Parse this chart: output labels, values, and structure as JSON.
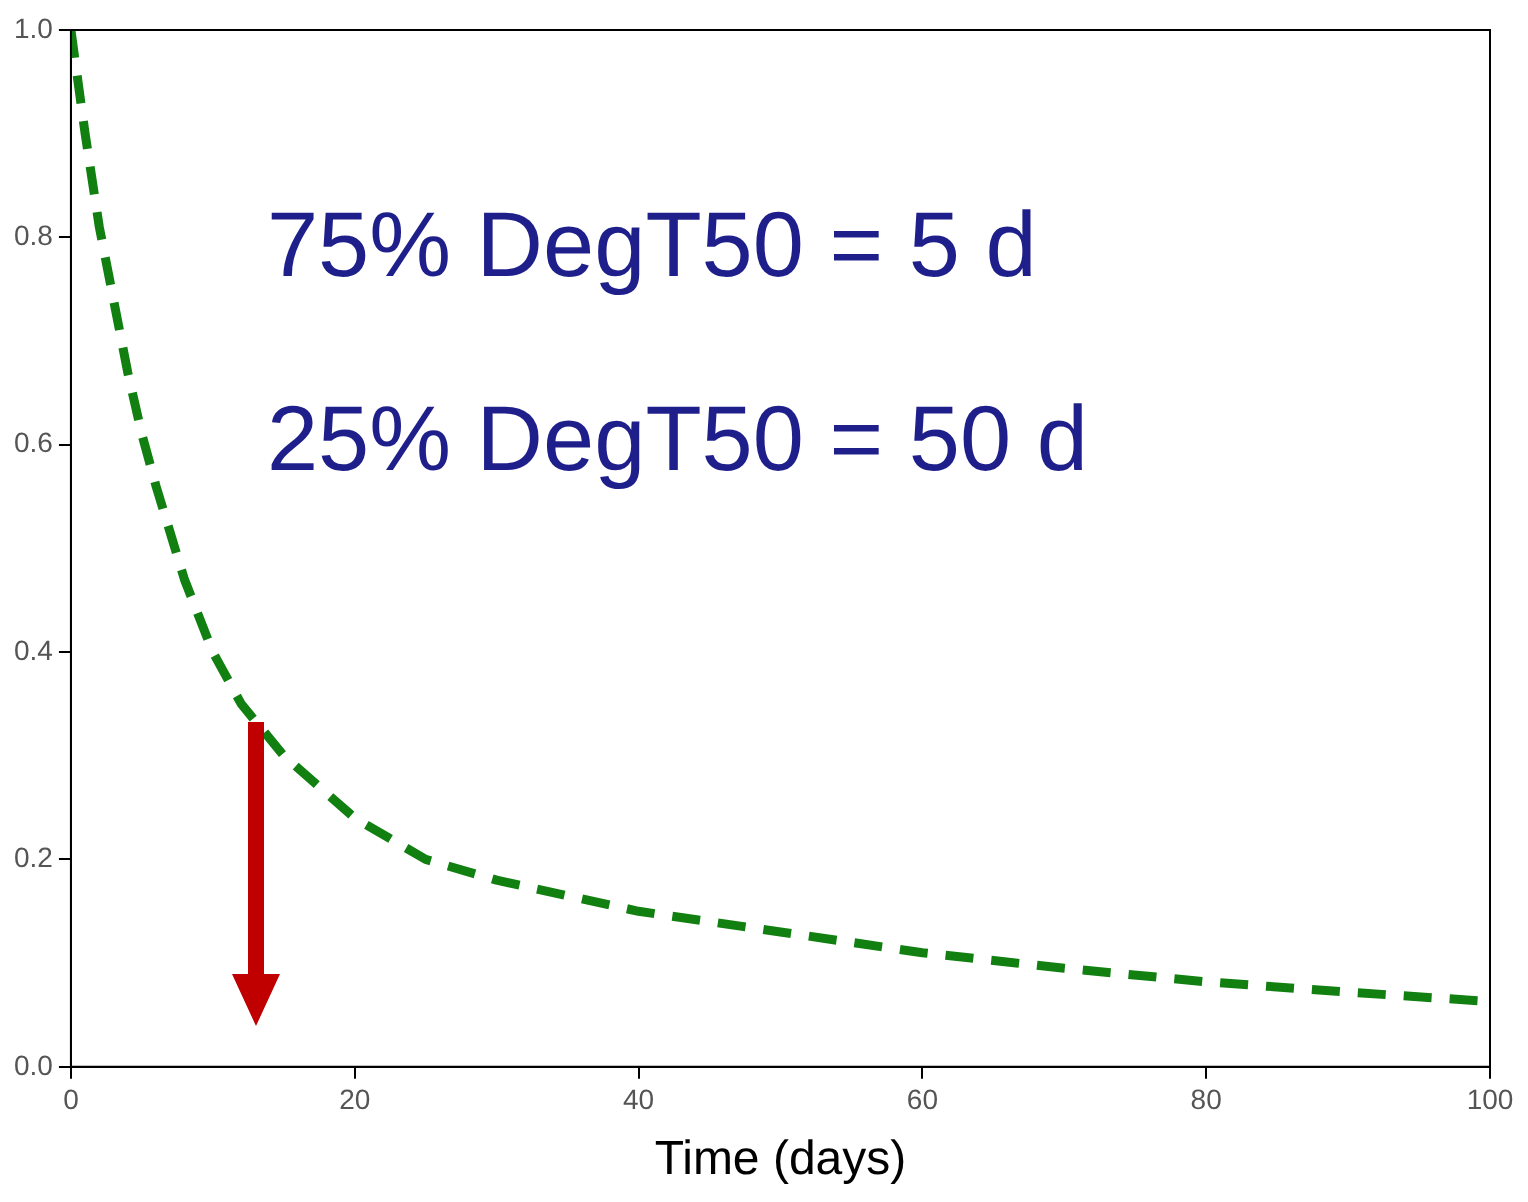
{
  "chart_data": {
    "type": "line",
    "xlabel": "Time (days)",
    "annotations": [
      "75% DegT50 = 5 d",
      "25% DegT50 = 50 d"
    ],
    "x": [
      0,
      1,
      2,
      3,
      4,
      5,
      6,
      8,
      10,
      12,
      15,
      20,
      25,
      30,
      40,
      50,
      60,
      70,
      80,
      90,
      100
    ],
    "series": [
      {
        "color": "#118011",
        "values": [
          1.0,
          0.9,
          0.81,
          0.74,
          0.67,
          0.61,
          0.56,
          0.47,
          0.4,
          0.35,
          0.3,
          0.24,
          0.2,
          0.18,
          0.15,
          0.13,
          0.11,
          0.095,
          0.082,
          0.072,
          0.063
        ]
      }
    ],
    "xlim": [
      0,
      100
    ],
    "xticks": [
      0,
      20,
      40,
      60,
      80,
      100
    ],
    "ylim": [
      0,
      1
    ],
    "yticks": [
      {
        "value": 0,
        "label": "0.0"
      },
      0.2,
      0.4,
      0.6,
      0.8,
      {
        "value": 1,
        "label": "1.0"
      }
    ],
    "grid": false,
    "legend": false,
    "marker": "none",
    "line_style": "dashed"
  }
}
